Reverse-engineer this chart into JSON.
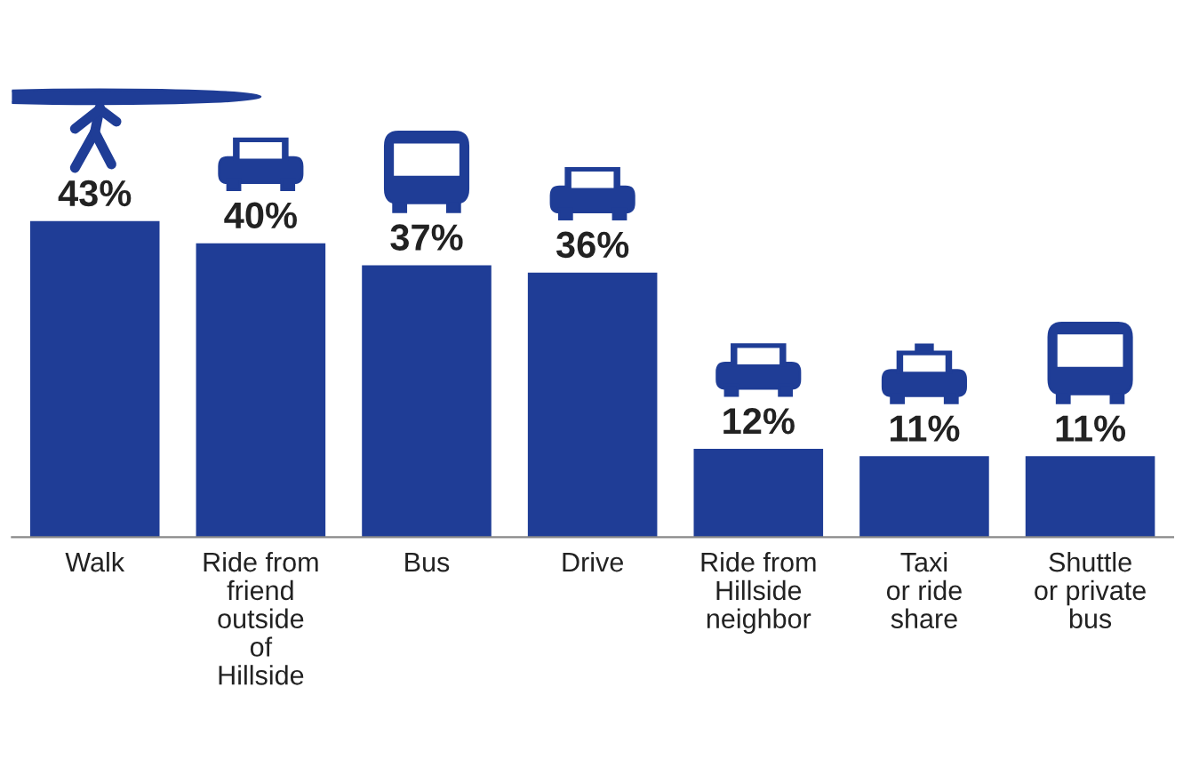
{
  "chart_data": {
    "type": "bar",
    "categories": [
      "Walk",
      "Ride from\nfriend\noutside\nof\nHillside",
      "Bus",
      "Drive",
      "Ride from\nHillside\nneighbor",
      "Taxi\nor ride\nshare",
      "Shuttle\nor private\nbus"
    ],
    "values": [
      43,
      40,
      37,
      36,
      12,
      11,
      11
    ],
    "value_labels": [
      "43%",
      "40%",
      "37%",
      "36%",
      "12%",
      "11%",
      "11%"
    ],
    "color": "#1f3d96",
    "grid": false,
    "legend": false
  }
}
